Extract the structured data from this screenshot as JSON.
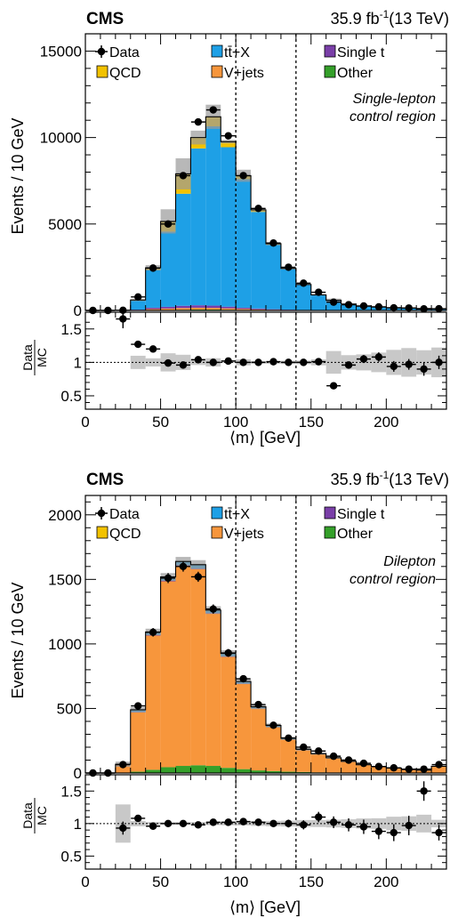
{
  "chart_data": [
    {
      "type": "bar",
      "stacked": true,
      "cms_label": "CMS",
      "lumi_label": "35.9 fb",
      "lumi_sup": "-1",
      "lumi_energy": "(13 TeV)",
      "region_line1": "Single-lepton",
      "region_line2": "control region",
      "ylabel": "Events / 10 GeV",
      "xlabel": "⟨m⟩ [GeV]",
      "ratio_label_num": "Data",
      "ratio_label_den": "MC",
      "xlim": [
        0,
        240
      ],
      "ylim": [
        0,
        16000
      ],
      "yticks": [
        0,
        5000,
        10000,
        15000
      ],
      "xticks": [
        0,
        50,
        100,
        150,
        200
      ],
      "ratio_ylim": [
        0.3,
        1.75
      ],
      "ratio_yticks": [
        0.5,
        1,
        1.5
      ],
      "vlines": [
        100,
        140
      ],
      "legend": [
        {
          "name": "Data",
          "color": "#000000",
          "marker": "point"
        },
        {
          "name": "tt̄+X",
          "color": "#1ea0e6",
          "marker": "box"
        },
        {
          "name": "Single t",
          "color": "#7a3fa8",
          "marker": "box"
        },
        {
          "name": "QCD",
          "color": "#f2c200",
          "marker": "box"
        },
        {
          "name": "V+jets",
          "color": "#f7963c",
          "marker": "box"
        },
        {
          "name": "Other",
          "color": "#35a02a",
          "marker": "box"
        }
      ],
      "bin_edges": [
        0,
        10,
        20,
        30,
        40,
        50,
        60,
        70,
        80,
        90,
        100,
        110,
        120,
        130,
        140,
        150,
        160,
        170,
        180,
        190,
        200,
        210,
        220,
        230,
        240
      ],
      "series": [
        {
          "name": "Other",
          "color": "#35a02a",
          "values": [
            0,
            0,
            0,
            5,
            20,
            30,
            40,
            50,
            50,
            40,
            30,
            20,
            10,
            5,
            5,
            5,
            0,
            0,
            0,
            0,
            0,
            0,
            0,
            0
          ]
        },
        {
          "name": "V+jets",
          "color": "#f7963c",
          "values": [
            0,
            0,
            0,
            20,
            60,
            80,
            100,
            110,
            100,
            80,
            60,
            40,
            30,
            20,
            10,
            5,
            5,
            5,
            5,
            0,
            0,
            0,
            0,
            0
          ]
        },
        {
          "name": "Single t",
          "color": "#7a3fa8",
          "values": [
            0,
            0,
            0,
            20,
            80,
            100,
            130,
            140,
            130,
            100,
            70,
            50,
            30,
            20,
            15,
            10,
            5,
            5,
            5,
            5,
            0,
            0,
            0,
            0
          ]
        },
        {
          "name": "tt̄+X",
          "color": "#1ea0e6",
          "values": [
            0,
            0,
            0,
            520,
            2180,
            4350,
            6480,
            9070,
            10370,
            9220,
            7430,
            5590,
            3730,
            2360,
            1470,
            880,
            580,
            360,
            240,
            200,
            160,
            140,
            110,
            90
          ]
        },
        {
          "name": "QCD",
          "color": "#f2c200",
          "values": [
            0,
            0,
            0,
            40,
            130,
            590,
            1150,
            630,
            550,
            320,
            200,
            120,
            60,
            30,
            0,
            0,
            0,
            0,
            0,
            0,
            0,
            0,
            0,
            0
          ]
        }
      ],
      "mc_uncertainty": [
        0,
        0,
        0,
        60,
        150,
        700,
        900,
        400,
        700,
        100,
        350,
        100,
        80,
        60,
        40,
        40,
        100,
        40,
        30,
        30,
        30,
        30,
        20,
        20
      ],
      "data_x": [
        5,
        15,
        25,
        35,
        45,
        55,
        65,
        75,
        85,
        95,
        105,
        115,
        125,
        135,
        145,
        155,
        165,
        175,
        185,
        195,
        205,
        215,
        225,
        235
      ],
      "data_y": [
        0,
        0,
        10,
        780,
        2450,
        5000,
        7800,
        10900,
        11600,
        10100,
        7800,
        5900,
        3900,
        2500,
        1580,
        1050,
        480,
        330,
        260,
        210,
        150,
        140,
        90,
        100
      ],
      "ratio_x": [
        25,
        35,
        45,
        55,
        65,
        75,
        85,
        95,
        105,
        115,
        125,
        135,
        145,
        155,
        165,
        175,
        185,
        195,
        205,
        215,
        225,
        235
      ],
      "ratio_y": [
        1.65,
        1.27,
        1.2,
        0.99,
        0.96,
        1.04,
        1.0,
        1.02,
        1.0,
        1.0,
        1.01,
        1.0,
        1.0,
        1.01,
        0.65,
        0.96,
        1.05,
        1.08,
        0.94,
        0.97,
        0.9,
        1.0
      ],
      "ratio_err": [
        0.14,
        0.03,
        0.03,
        0.03,
        0.03,
        0.02,
        0.02,
        0.02,
        0.02,
        0.02,
        0.02,
        0.03,
        0.03,
        0.03,
        0.04,
        0.05,
        0.06,
        0.07,
        0.08,
        0.08,
        0.1,
        0.1
      ]
    },
    {
      "type": "bar",
      "stacked": true,
      "cms_label": "CMS",
      "lumi_label": "35.9 fb",
      "lumi_sup": "-1",
      "lumi_energy": "(13 TeV)",
      "region_line1": "Dilepton",
      "region_line2": "control region",
      "ylabel": "Events / 10 GeV",
      "xlabel": "⟨m⟩ [GeV]",
      "ratio_label_num": "Data",
      "ratio_label_den": "MC",
      "xlim": [
        0,
        240
      ],
      "ylim": [
        0,
        2150
      ],
      "yticks": [
        0,
        500,
        1000,
        1500,
        2000
      ],
      "xticks": [
        0,
        50,
        100,
        150,
        200
      ],
      "ratio_ylim": [
        0.3,
        1.75
      ],
      "ratio_yticks": [
        0.5,
        1,
        1.5
      ],
      "vlines": [
        100,
        140
      ],
      "legend": [
        {
          "name": "Data",
          "color": "#000000",
          "marker": "point"
        },
        {
          "name": "tt̄+X",
          "color": "#1ea0e6",
          "marker": "box"
        },
        {
          "name": "Single t",
          "color": "#7a3fa8",
          "marker": "box"
        },
        {
          "name": "QCD",
          "color": "#f2c200",
          "marker": "box"
        },
        {
          "name": "V+jets",
          "color": "#f7963c",
          "marker": "box"
        },
        {
          "name": "Other",
          "color": "#35a02a",
          "marker": "box"
        }
      ],
      "bin_edges": [
        0,
        10,
        20,
        30,
        40,
        50,
        60,
        70,
        80,
        90,
        100,
        110,
        120,
        130,
        140,
        150,
        160,
        170,
        180,
        190,
        200,
        210,
        220,
        230,
        240
      ],
      "series": [
        {
          "name": "Other",
          "color": "#35a02a",
          "values": [
            0,
            0,
            2,
            10,
            25,
            45,
            55,
            60,
            55,
            40,
            30,
            20,
            15,
            10,
            8,
            5,
            4,
            3,
            2,
            2,
            1,
            1,
            1,
            1
          ]
        },
        {
          "name": "V+jets",
          "color": "#f7963c",
          "values": [
            0,
            0,
            60,
            460,
            1040,
            1440,
            1550,
            1520,
            1180,
            860,
            660,
            480,
            340,
            250,
            170,
            140,
            110,
            85,
            60,
            45,
            35,
            25,
            20,
            50
          ]
        },
        {
          "name": "Single t",
          "color": "#7a3fa8",
          "values": [
            0,
            0,
            1,
            3,
            5,
            6,
            6,
            6,
            5,
            4,
            3,
            2,
            2,
            1,
            1,
            1,
            1,
            1,
            0,
            0,
            0,
            0,
            0,
            0
          ]
        },
        {
          "name": "tt̄+X",
          "color": "#1ea0e6",
          "values": [
            0,
            0,
            5,
            15,
            20,
            25,
            25,
            25,
            20,
            20,
            15,
            10,
            10,
            8,
            5,
            4,
            3,
            2,
            2,
            2,
            2,
            1,
            1,
            1
          ]
        },
        {
          "name": "QCD",
          "color": "#f2c200",
          "values": [
            0,
            0,
            0,
            2,
            3,
            3,
            3,
            3,
            2,
            2,
            1,
            1,
            1,
            0,
            0,
            0,
            0,
            0,
            0,
            0,
            0,
            0,
            0,
            0
          ]
        }
      ],
      "mc_uncertainty": [
        0,
        0,
        20,
        20,
        25,
        30,
        35,
        35,
        30,
        25,
        20,
        18,
        15,
        12,
        10,
        8,
        7,
        6,
        5,
        4,
        4,
        3,
        3,
        3
      ],
      "data_x": [
        5,
        15,
        25,
        35,
        45,
        55,
        65,
        75,
        85,
        95,
        105,
        115,
        125,
        135,
        145,
        155,
        165,
        175,
        185,
        195,
        205,
        215,
        225,
        235
      ],
      "data_y": [
        0,
        0,
        65,
        520,
        1090,
        1510,
        1600,
        1520,
        1270,
        930,
        730,
        530,
        370,
        270,
        200,
        170,
        130,
        100,
        75,
        50,
        40,
        30,
        30,
        65
      ],
      "ratio_x": [
        25,
        35,
        45,
        55,
        65,
        75,
        85,
        95,
        105,
        115,
        125,
        135,
        145,
        155,
        165,
        175,
        185,
        195,
        205,
        215,
        225,
        235
      ],
      "ratio_y": [
        0.93,
        1.08,
        0.96,
        1.0,
        1.0,
        0.98,
        1.02,
        1.02,
        1.03,
        1.02,
        1.0,
        1.0,
        0.98,
        1.1,
        1.02,
        0.98,
        0.95,
        0.88,
        0.86,
        0.97,
        1.5,
        0.86
      ],
      "ratio_err": [
        0.1,
        0.04,
        0.03,
        0.03,
        0.03,
        0.03,
        0.03,
        0.03,
        0.04,
        0.04,
        0.05,
        0.06,
        0.07,
        0.08,
        0.09,
        0.1,
        0.11,
        0.12,
        0.13,
        0.15,
        0.15,
        0.12
      ]
    }
  ]
}
